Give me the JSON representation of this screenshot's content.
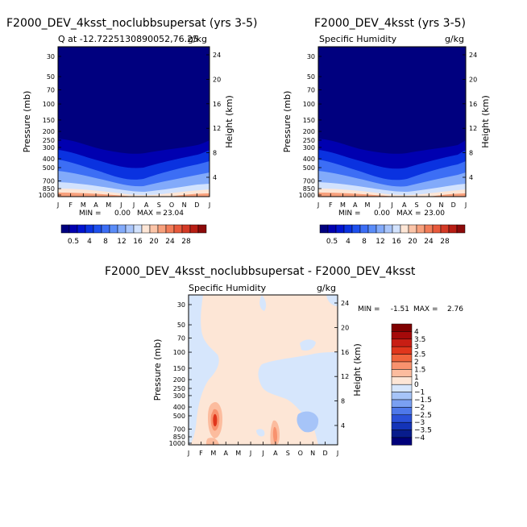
{
  "chart_data": [
    {
      "type": "heatmap",
      "title": "F2000_DEV_4ksst_noclubbsupersat (yrs 3-5)",
      "subtitle_left": "Q at -12.7225130890052,76.25",
      "units": "g/kg",
      "xlabel": "",
      "ylabel": "Pressure (mb)",
      "ylabel_right": "Height (km)",
      "months": [
        "J",
        "F",
        "M",
        "A",
        "M",
        "J",
        "J",
        "A",
        "S",
        "O",
        "N",
        "D",
        "J"
      ],
      "pressure_ticks": [
        "30",
        "50",
        "70",
        "100",
        "150",
        "200",
        "250",
        "300",
        "400",
        "500",
        "700",
        "850",
        "1000"
      ],
      "height_ticks": [
        "24",
        "20",
        "16",
        "12",
        "8",
        "4"
      ],
      "stats": {
        "min_label": "MIN =",
        "min": "0.00",
        "max_label": "MAX =",
        "max": "23.04"
      },
      "colorbar": {
        "labels": [
          "0.5",
          "4",
          "8",
          "12",
          "16",
          "20",
          "24",
          "28"
        ]
      }
    },
    {
      "type": "heatmap",
      "title": "F2000_DEV_4ksst (yrs 3-5)",
      "subtitle_left": "Specific Humidity",
      "units": "g/kg",
      "xlabel": "",
      "ylabel": "Pressure (mb)",
      "ylabel_right": "Height (km)",
      "months": [
        "J",
        "F",
        "M",
        "A",
        "M",
        "J",
        "J",
        "A",
        "S",
        "O",
        "N",
        "D",
        "J"
      ],
      "pressure_ticks": [
        "30",
        "50",
        "70",
        "100",
        "150",
        "200",
        "250",
        "300",
        "400",
        "500",
        "700",
        "850",
        "1000"
      ],
      "height_ticks": [
        "24",
        "20",
        "16",
        "12",
        "8",
        "4"
      ],
      "stats": {
        "min_label": "MIN =",
        "min": "0.00",
        "max_label": "MAX =",
        "max": "23.00"
      },
      "colorbar": {
        "labels": [
          "0.5",
          "4",
          "8",
          "12",
          "16",
          "20",
          "24",
          "28"
        ]
      }
    },
    {
      "type": "heatmap",
      "title": "F2000_DEV_4ksst_noclubbsupersat - F2000_DEV_4ksst",
      "subtitle_left": "Specific Humidity",
      "units": "g/kg",
      "xlabel": "",
      "ylabel": "Pressure (mb)",
      "ylabel_right": "Height (km)",
      "months": [
        "J",
        "F",
        "M",
        "A",
        "M",
        "J",
        "J",
        "A",
        "S",
        "O",
        "N",
        "D",
        "J"
      ],
      "pressure_ticks": [
        "30",
        "50",
        "70",
        "100",
        "150",
        "200",
        "250",
        "300",
        "400",
        "500",
        "700",
        "850",
        "1000"
      ],
      "height_ticks": [
        "24",
        "20",
        "16",
        "12",
        "8",
        "4"
      ],
      "stats": {
        "min_label": "MIN =",
        "min": "-1.51",
        "max_label": "MAX =",
        "max": "2.76"
      },
      "colorbar": {
        "labels": [
          "4",
          "3.5",
          "3",
          "2.5",
          "2",
          "1.5",
          "1",
          "0",
          "−1",
          "−1.5",
          "−2",
          "−2.5",
          "−3",
          "−3.5",
          "−4"
        ]
      }
    }
  ],
  "colors": {
    "abs_scale": [
      "#00007f",
      "#0000b0",
      "#0014d0",
      "#0a32e0",
      "#1e50ee",
      "#3c6ef5",
      "#5a8cf8",
      "#82aafa",
      "#aac6fb",
      "#d2e2fd",
      "#fde6d6",
      "#fbc4a8",
      "#f7a07c",
      "#f27c58",
      "#e85a3c",
      "#d43a26",
      "#b81e14",
      "#8c0a0a"
    ],
    "diff_scale": [
      "#7f0000",
      "#a50a0a",
      "#c81e14",
      "#e0361c",
      "#f0643c",
      "#f8926e",
      "#fcbc9e",
      "#fde6d6",
      "#d6e6fc",
      "#a6c4f8",
      "#7aa0f2",
      "#4e78ea",
      "#2a50d8",
      "#1434b8",
      "#081c8c",
      "#00007a"
    ]
  }
}
